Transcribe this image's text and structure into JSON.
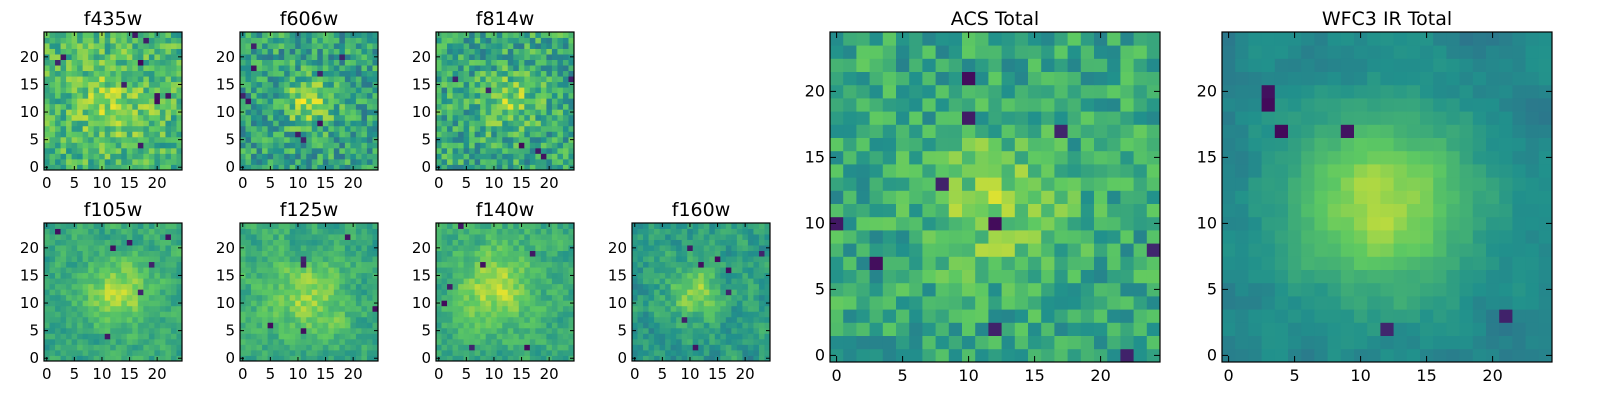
{
  "figure": {
    "colormap": "viridis",
    "colormap_stops": [
      "#440154",
      "#3b528b",
      "#21918c",
      "#5ec962",
      "#fde725"
    ]
  },
  "chart_data": [
    {
      "type": "heatmap",
      "title": "f435w",
      "grid_size": 25,
      "xlim": [
        0,
        24
      ],
      "ylim": [
        0,
        24
      ],
      "x_ticks": [
        0,
        5,
        10,
        15,
        20
      ],
      "y_ticks": [
        0,
        5,
        10,
        15,
        20
      ],
      "seed": 11,
      "noise": 0.18,
      "peak": 0.16,
      "peak_center": [
        12,
        12
      ],
      "peak_sigma": 5.0,
      "smooth": 0.0,
      "base": 0.66,
      "dark_spots": 10
    },
    {
      "type": "heatmap",
      "title": "f606w",
      "grid_size": 25,
      "xlim": [
        0,
        24
      ],
      "ylim": [
        0,
        24
      ],
      "x_ticks": [
        0,
        5,
        10,
        15,
        20
      ],
      "y_ticks": [
        0,
        5,
        10,
        15,
        20
      ],
      "seed": 23,
      "noise": 0.2,
      "peak": 0.3,
      "peak_center": [
        12,
        12
      ],
      "peak_sigma": 3.0,
      "smooth": 0.0,
      "base": 0.58,
      "dark_spots": 9
    },
    {
      "type": "heatmap",
      "title": "f814w",
      "grid_size": 25,
      "xlim": [
        0,
        24
      ],
      "ylim": [
        0,
        24
      ],
      "x_ticks": [
        0,
        5,
        10,
        15,
        20
      ],
      "y_ticks": [
        0,
        5,
        10,
        15,
        20
      ],
      "seed": 37,
      "noise": 0.2,
      "peak": 0.2,
      "peak_center": [
        13,
        12
      ],
      "peak_sigma": 3.5,
      "smooth": 0.0,
      "base": 0.6,
      "dark_spots": 6
    },
    {
      "type": "heatmap",
      "title": "f105w",
      "grid_size": 25,
      "xlim": [
        0,
        24
      ],
      "ylim": [
        0,
        24
      ],
      "x_ticks": [
        0,
        5,
        10,
        15,
        20
      ],
      "y_ticks": [
        0,
        5,
        10,
        15,
        20
      ],
      "seed": 41,
      "noise": 0.16,
      "peak": 0.3,
      "peak_center": [
        13,
        12
      ],
      "peak_sigma": 4.0,
      "smooth": 0.5,
      "base": 0.6,
      "dark_spots": 7
    },
    {
      "type": "heatmap",
      "title": "f125w",
      "grid_size": 25,
      "xlim": [
        0,
        24
      ],
      "ylim": [
        0,
        24
      ],
      "x_ticks": [
        0,
        5,
        10,
        15,
        20
      ],
      "y_ticks": [
        0,
        5,
        10,
        15,
        20
      ],
      "seed": 53,
      "noise": 0.17,
      "peak": 0.22,
      "peak_center": [
        12,
        11
      ],
      "peak_sigma": 4.5,
      "smooth": 0.5,
      "base": 0.62,
      "dark_spots": 6
    },
    {
      "type": "heatmap",
      "title": "f140w",
      "grid_size": 25,
      "xlim": [
        0,
        24
      ],
      "ylim": [
        0,
        24
      ],
      "x_ticks": [
        0,
        5,
        10,
        15,
        20
      ],
      "y_ticks": [
        0,
        5,
        10,
        15,
        20
      ],
      "seed": 67,
      "noise": 0.16,
      "peak": 0.28,
      "peak_center": [
        10,
        13
      ],
      "peak_sigma": 4.5,
      "smooth": 0.5,
      "base": 0.62,
      "dark_spots": 7
    },
    {
      "type": "heatmap",
      "title": "f160w",
      "grid_size": 25,
      "xlim": [
        0,
        24
      ],
      "ylim": [
        0,
        24
      ],
      "x_ticks": [
        0,
        5,
        10,
        15,
        20
      ],
      "y_ticks": [
        0,
        5,
        10,
        15,
        20
      ],
      "seed": 79,
      "noise": 0.18,
      "peak": 0.28,
      "peak_center": [
        11,
        12
      ],
      "peak_sigma": 3.5,
      "smooth": 0.5,
      "base": 0.55,
      "dark_spots": 8
    },
    {
      "type": "heatmap",
      "title": "ACS Total",
      "grid_size": 25,
      "xlim": [
        0,
        24
      ],
      "ylim": [
        0,
        24
      ],
      "x_ticks": [
        0,
        5,
        10,
        15,
        20
      ],
      "y_ticks": [
        0,
        5,
        10,
        15,
        20
      ],
      "seed": 97,
      "noise": 0.16,
      "peak": 0.22,
      "peak_center": [
        12,
        11.5
      ],
      "peak_sigma": 3.5,
      "smooth": 0.0,
      "base": 0.6,
      "dark_spots": 10
    },
    {
      "type": "heatmap",
      "title": "WFC3 IR Total",
      "grid_size": 25,
      "xlim": [
        0,
        24
      ],
      "ylim": [
        0,
        24
      ],
      "x_ticks": [
        0,
        5,
        10,
        15,
        20
      ],
      "y_ticks": [
        0,
        5,
        10,
        15,
        20
      ],
      "seed": 113,
      "noise": 0.1,
      "peak": 0.42,
      "peak_center": [
        11.5,
        11.5
      ],
      "peak_sigma": 5.0,
      "smooth": 0.7,
      "base": 0.45,
      "dark_spots": 6
    }
  ]
}
